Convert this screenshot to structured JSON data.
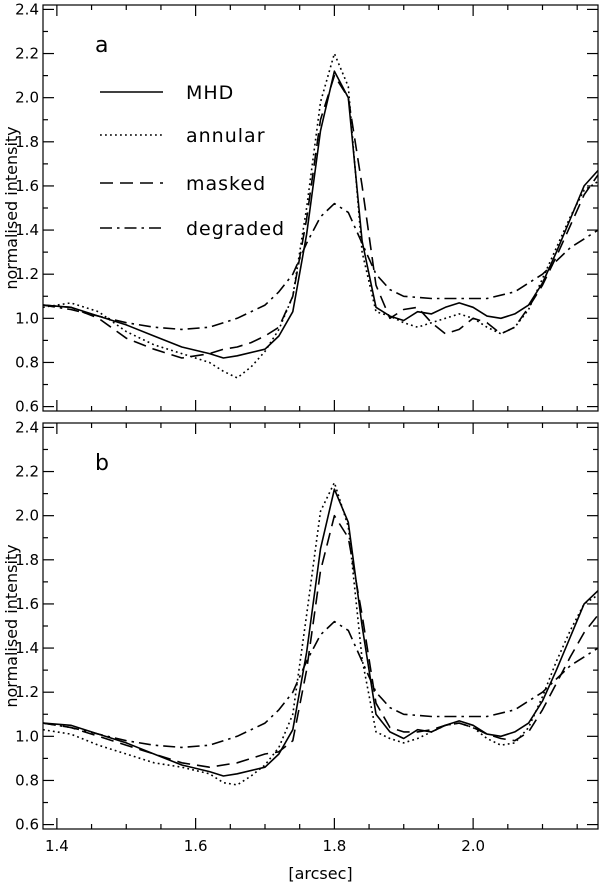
{
  "chart_data": [
    {
      "type": "line",
      "panel": "a",
      "ylabel": "normalised intensity",
      "xlabel": "",
      "xlim": [
        1.38,
        2.18
      ],
      "ylim": [
        0.58,
        2.42
      ],
      "yticks": [
        "0.6",
        "0.8",
        "1.0",
        "1.2",
        "1.4",
        "1.6",
        "1.8",
        "2.0",
        "2.2",
        "2.4"
      ],
      "xticks": [],
      "legend": {
        "placement": "top-left",
        "entries": [
          "MHD",
          "annular",
          "masked",
          "degraded"
        ]
      },
      "series": [
        {
          "name": "MHD",
          "style": "solid",
          "x": [
            1.38,
            1.42,
            1.46,
            1.5,
            1.54,
            1.58,
            1.62,
            1.64,
            1.66,
            1.7,
            1.72,
            1.74,
            1.76,
            1.78,
            1.8,
            1.82,
            1.84,
            1.86,
            1.88,
            1.9,
            1.92,
            1.94,
            1.96,
            1.98,
            2.0,
            2.02,
            2.04,
            2.06,
            2.08,
            2.1,
            2.12,
            2.14,
            2.16,
            2.18
          ],
          "y": [
            1.06,
            1.05,
            1.01,
            0.97,
            0.92,
            0.87,
            0.84,
            0.82,
            0.83,
            0.86,
            0.92,
            1.03,
            1.38,
            1.85,
            2.12,
            2.0,
            1.35,
            1.05,
            1.01,
            0.99,
            1.03,
            1.02,
            1.05,
            1.07,
            1.05,
            1.01,
            1.0,
            1.02,
            1.06,
            1.16,
            1.3,
            1.45,
            1.6,
            1.67
          ]
        },
        {
          "name": "annular",
          "style": "dotted",
          "x": [
            1.38,
            1.42,
            1.46,
            1.5,
            1.54,
            1.58,
            1.62,
            1.64,
            1.66,
            1.68,
            1.7,
            1.72,
            1.74,
            1.76,
            1.78,
            1.8,
            1.82,
            1.84,
            1.86,
            1.88,
            1.9,
            1.92,
            1.94,
            1.96,
            1.98,
            2.0,
            2.02,
            2.04,
            2.06,
            2.08,
            2.1,
            2.12,
            2.14,
            2.16,
            2.18
          ],
          "y": [
            1.05,
            1.07,
            1.03,
            0.94,
            0.88,
            0.84,
            0.8,
            0.76,
            0.73,
            0.78,
            0.85,
            0.95,
            1.1,
            1.5,
            1.98,
            2.2,
            2.05,
            1.3,
            1.03,
            1.01,
            0.98,
            0.96,
            0.98,
            1.0,
            1.02,
            1.0,
            0.96,
            0.93,
            0.96,
            1.04,
            1.18,
            1.32,
            1.46,
            1.58,
            1.62
          ]
        },
        {
          "name": "masked",
          "style": "dashed",
          "x": [
            1.38,
            1.42,
            1.46,
            1.5,
            1.54,
            1.58,
            1.62,
            1.64,
            1.66,
            1.68,
            1.7,
            1.72,
            1.74,
            1.76,
            1.78,
            1.8,
            1.82,
            1.84,
            1.86,
            1.88,
            1.9,
            1.92,
            1.94,
            1.96,
            1.98,
            2.0,
            2.02,
            2.04,
            2.06,
            2.08,
            2.1,
            2.12,
            2.14,
            2.16,
            2.18
          ],
          "y": [
            1.06,
            1.05,
            1.0,
            0.91,
            0.86,
            0.82,
            0.84,
            0.86,
            0.87,
            0.89,
            0.92,
            0.96,
            1.1,
            1.45,
            1.9,
            2.1,
            2.0,
            1.6,
            1.15,
            1.0,
            1.04,
            1.05,
            0.98,
            0.93,
            0.95,
            1.0,
            0.98,
            0.93,
            0.96,
            1.05,
            1.15,
            1.28,
            1.42,
            1.56,
            1.65
          ]
        },
        {
          "name": "degraded",
          "style": "dashdot",
          "x": [
            1.38,
            1.42,
            1.46,
            1.5,
            1.54,
            1.58,
            1.62,
            1.66,
            1.7,
            1.72,
            1.74,
            1.76,
            1.78,
            1.8,
            1.82,
            1.84,
            1.86,
            1.88,
            1.9,
            1.94,
            1.98,
            2.02,
            2.06,
            2.1,
            2.14,
            2.18
          ],
          "y": [
            1.06,
            1.04,
            1.01,
            0.98,
            0.96,
            0.95,
            0.96,
            1.0,
            1.06,
            1.12,
            1.2,
            1.34,
            1.46,
            1.52,
            1.48,
            1.34,
            1.2,
            1.13,
            1.1,
            1.09,
            1.09,
            1.09,
            1.12,
            1.2,
            1.32,
            1.4
          ]
        }
      ]
    },
    {
      "type": "line",
      "panel": "b",
      "ylabel": "normalised intensity",
      "xlabel": "[arcsec]",
      "xlim": [
        1.38,
        2.18
      ],
      "ylim": [
        0.58,
        2.42
      ],
      "yticks": [
        "0.6",
        "0.8",
        "1.0",
        "1.2",
        "1.4",
        "1.6",
        "1.8",
        "2.0",
        "2.2",
        "2.4"
      ],
      "xticks": [
        "1.4",
        "1.6",
        "1.8",
        "2.0"
      ],
      "series": [
        {
          "name": "MHD",
          "style": "solid",
          "x": [
            1.38,
            1.42,
            1.46,
            1.5,
            1.54,
            1.58,
            1.62,
            1.64,
            1.66,
            1.7,
            1.72,
            1.74,
            1.76,
            1.78,
            1.8,
            1.82,
            1.84,
            1.86,
            1.88,
            1.9,
            1.92,
            1.94,
            1.96,
            1.98,
            2.0,
            2.02,
            2.04,
            2.06,
            2.08,
            2.1,
            2.12,
            2.14,
            2.16,
            2.18
          ],
          "y": [
            1.06,
            1.05,
            1.01,
            0.97,
            0.92,
            0.87,
            0.84,
            0.82,
            0.83,
            0.86,
            0.92,
            1.03,
            1.38,
            1.85,
            2.12,
            1.97,
            1.5,
            1.1,
            1.02,
            0.99,
            1.03,
            1.02,
            1.05,
            1.07,
            1.05,
            1.01,
            1.0,
            1.02,
            1.06,
            1.16,
            1.3,
            1.45,
            1.6,
            1.66
          ]
        },
        {
          "name": "annular",
          "style": "dotted",
          "x": [
            1.38,
            1.42,
            1.46,
            1.5,
            1.54,
            1.58,
            1.62,
            1.64,
            1.66,
            1.68,
            1.7,
            1.72,
            1.74,
            1.76,
            1.78,
            1.8,
            1.82,
            1.84,
            1.86,
            1.88,
            1.9,
            1.92,
            1.94,
            1.96,
            1.98,
            2.0,
            2.02,
            2.04,
            2.06,
            2.08,
            2.1,
            2.12,
            2.14,
            2.16,
            2.18
          ],
          "y": [
            1.03,
            1.01,
            0.96,
            0.92,
            0.88,
            0.86,
            0.83,
            0.79,
            0.78,
            0.82,
            0.87,
            0.95,
            1.1,
            1.55,
            2.02,
            2.15,
            1.95,
            1.35,
            1.02,
            0.99,
            0.97,
            0.99,
            1.02,
            1.05,
            1.06,
            1.04,
            0.99,
            0.96,
            0.97,
            1.04,
            1.18,
            1.34,
            1.48,
            1.6,
            1.64
          ]
        },
        {
          "name": "masked",
          "style": "dashed",
          "x": [
            1.38,
            1.42,
            1.46,
            1.5,
            1.54,
            1.58,
            1.62,
            1.66,
            1.68,
            1.7,
            1.72,
            1.74,
            1.76,
            1.78,
            1.8,
            1.82,
            1.84,
            1.86,
            1.88,
            1.9,
            1.92,
            1.94,
            1.96,
            1.98,
            2.0,
            2.02,
            2.04,
            2.06,
            2.08,
            2.1,
            2.12,
            2.14,
            2.16,
            2.18
          ],
          "y": [
            1.06,
            1.04,
            1.0,
            0.96,
            0.92,
            0.88,
            0.86,
            0.88,
            0.9,
            0.92,
            0.93,
            0.98,
            1.3,
            1.75,
            2.0,
            1.9,
            1.55,
            1.15,
            1.04,
            1.02,
            1.02,
            1.03,
            1.05,
            1.06,
            1.04,
            1.01,
            0.99,
            0.98,
            1.02,
            1.12,
            1.24,
            1.36,
            1.47,
            1.55
          ]
        },
        {
          "name": "degraded",
          "style": "dashdot",
          "x": [
            1.38,
            1.42,
            1.46,
            1.5,
            1.54,
            1.58,
            1.62,
            1.66,
            1.7,
            1.72,
            1.74,
            1.76,
            1.78,
            1.8,
            1.82,
            1.84,
            1.86,
            1.88,
            1.9,
            1.94,
            1.98,
            2.02,
            2.06,
            2.1,
            2.14,
            2.18
          ],
          "y": [
            1.06,
            1.04,
            1.01,
            0.98,
            0.96,
            0.95,
            0.96,
            1.0,
            1.06,
            1.12,
            1.2,
            1.34,
            1.46,
            1.52,
            1.48,
            1.34,
            1.2,
            1.13,
            1.1,
            1.09,
            1.09,
            1.09,
            1.12,
            1.2,
            1.32,
            1.4
          ]
        }
      ]
    }
  ]
}
